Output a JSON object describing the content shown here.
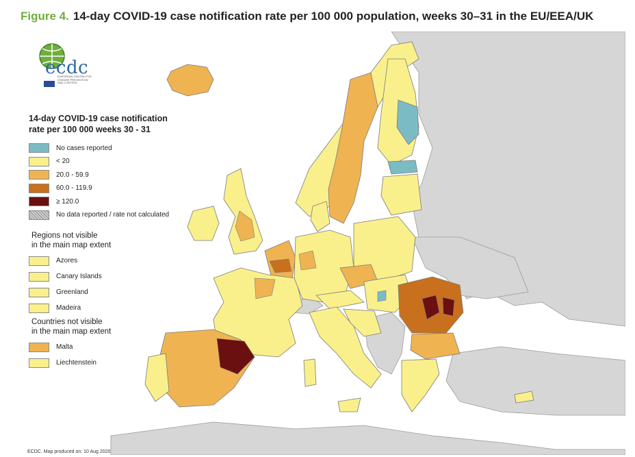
{
  "title": {
    "figure_label": "Figure 4.",
    "text": "14-day COVID-19 case notification rate per 100 000 population, weeks 30–31 in the EU/EEA/UK"
  },
  "logo": {
    "text": "ecdc",
    "subtext": "EUROPEAN CENTRE FOR DISEASE PREVENTION AND CONTROL"
  },
  "legend": {
    "title_line1": "14-day COVID-19 case notification",
    "title_line2": "rate per 100 000 weeks 30 - 31",
    "items": [
      {
        "label": "No cases reported",
        "color": "#7bbcc4"
      },
      {
        "label": "< 20",
        "color": "#f9f08c"
      },
      {
        "label": "20.0 - 59.9",
        "color": "#f0b352"
      },
      {
        "label": "60.0 - 119.9",
        "color": "#c8701e"
      },
      {
        "label": "≥ 120.0",
        "color": "#6b1010"
      },
      {
        "label": "No data reported / rate not calculated",
        "color": "hatched-grey"
      }
    ]
  },
  "regions_not_visible": {
    "heading_line1": "Regions not visible",
    "heading_line2": "in the main map extent",
    "items": [
      {
        "label": "Azores",
        "color": "#f9f08c"
      },
      {
        "label": "Canary Islands",
        "color": "#f9f08c"
      },
      {
        "label": "Greenland",
        "color": "#f9f08c"
      },
      {
        "label": "Madeira",
        "color": "#f9f08c"
      }
    ]
  },
  "countries_not_visible": {
    "heading_line1": "Countries not visible",
    "heading_line2": "in the main map extent",
    "items": [
      {
        "label": "Malta",
        "color": "#f0b352"
      },
      {
        "label": "Liechtenstein",
        "color": "#f9f08c"
      }
    ]
  },
  "footer": "ECDC. Map produced on: 10 Aug 2020",
  "colors": {
    "sea": "#ffffff",
    "non_eu_land": "#d6d6d6",
    "border": "#7a7a7a",
    "title_accent": "#6fae3c"
  }
}
